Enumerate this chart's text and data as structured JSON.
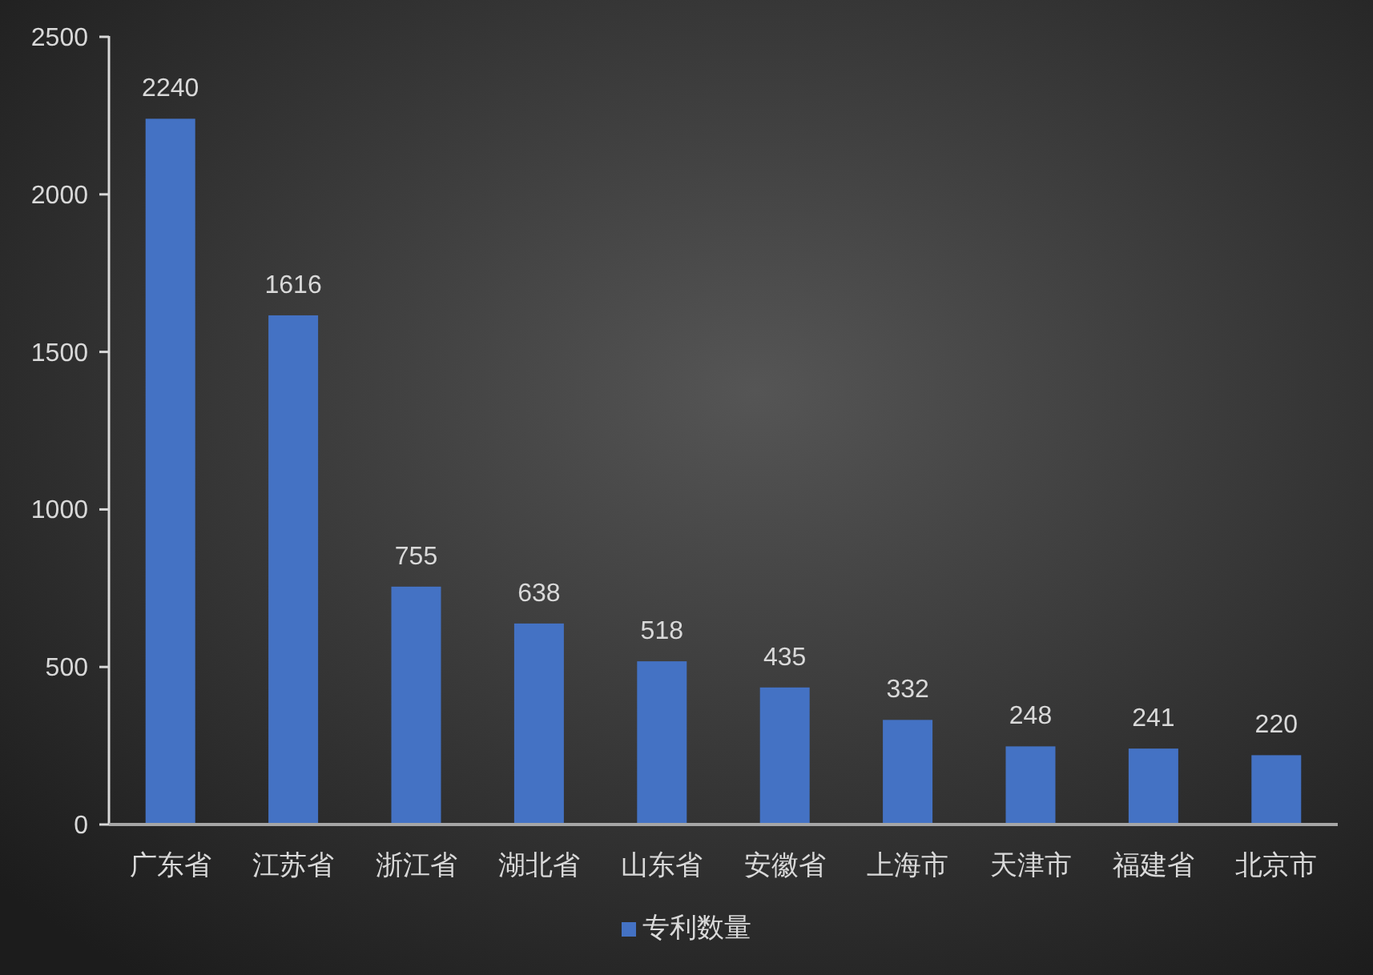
{
  "chart_data": {
    "type": "bar",
    "categories": [
      "广东省",
      "江苏省",
      "浙江省",
      "湖北省",
      "山东省",
      "安徽省",
      "上海市",
      "天津市",
      "福建省",
      "北京市"
    ],
    "series": [
      {
        "name": "专利数量",
        "color": "#4472c4",
        "values": [
          2240,
          1616,
          755,
          638,
          518,
          435,
          332,
          248,
          241,
          220
        ]
      }
    ],
    "ylim": [
      0,
      2500
    ],
    "yticks": [
      0,
      500,
      1000,
      1500,
      2000,
      2500
    ],
    "data_labels": true,
    "legend": "bottom"
  }
}
